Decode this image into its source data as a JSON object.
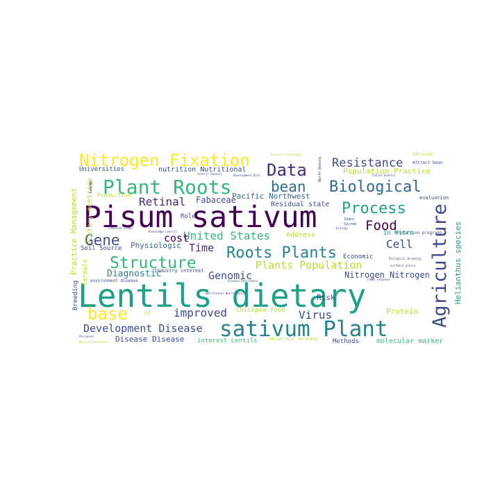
{
  "colors": {
    "background": "#ffffff",
    "dark_purple": "#440154",
    "indigo": "#482878",
    "blue": "#3e4a89",
    "steel_blue": "#31688e",
    "teal": "#26828e",
    "green_teal": "#1f9e89",
    "green": "#35b779",
    "lime": "#6ece58",
    "yellow_green": "#b5de2b",
    "yellow": "#fde725"
  },
  "words": [
    {
      "text": "Lentils dietary",
      "color": "#1f9e89"
    },
    {
      "text": "Pisum sativum",
      "color": "#440154"
    },
    {
      "text": "sativum Plant",
      "color": "#26828e"
    },
    {
      "text": "Agriculture",
      "color": "#3e4a89"
    },
    {
      "text": "Plant Roots",
      "color": "#35b779"
    },
    {
      "text": "Nitrogen Fixation",
      "color": "#fde725"
    },
    {
      "text": "Data",
      "color": "#482878"
    },
    {
      "text": "Biological",
      "color": "#31688e"
    },
    {
      "text": "bean",
      "color": "#31688e"
    },
    {
      "text": "Process",
      "color": "#1f9e89"
    },
    {
      "text": "Roots Plants",
      "color": "#26828e"
    },
    {
      "text": "Structure",
      "color": "#35b779"
    },
    {
      "text": "Resistance",
      "color": "#3e4a89"
    },
    {
      "text": "Food",
      "color": "#440154"
    },
    {
      "text": "Gene",
      "color": "#3e4a89"
    },
    {
      "text": "base",
      "color": "#fde725"
    },
    {
      "text": "Development Disease",
      "color": "#3e4a89"
    },
    {
      "text": "Retinal",
      "color": "#482878"
    },
    {
      "text": "United States",
      "color": "#35b779"
    },
    {
      "text": "cost",
      "color": "#440154"
    },
    {
      "text": "improved",
      "color": "#3e4a89"
    },
    {
      "text": "Cell",
      "color": "#3e4a89"
    },
    {
      "text": "Genomic",
      "color": "#3e4a89"
    },
    {
      "text": "Plants Population",
      "color": "#b5de2b"
    },
    {
      "text": "Time",
      "color": "#482878"
    },
    {
      "text": "Virus",
      "color": "#3e4a89"
    },
    {
      "text": "Fabaceae",
      "color": "#3e4a89"
    },
    {
      "text": "Pacific Northwest",
      "color": "#31688e"
    },
    {
      "text": "Residual state",
      "color": "#3e4a89"
    },
    {
      "text": "Population Practice",
      "color": "#b5de2b"
    },
    {
      "text": "Diagnostic",
      "color": "#26828e"
    },
    {
      "text": "Physiologic",
      "color": "#31688e"
    },
    {
      "text": "Disease Disease",
      "color": "#3e4a89"
    },
    {
      "text": "Nitrogen Nitrogen",
      "color": "#3e4a89"
    },
    {
      "text": "Helianthus species",
      "color": "#1f9e89"
    },
    {
      "text": "Practice Management",
      "color": "#b5de2b"
    },
    {
      "text": "dietary meetings",
      "color": "#b5de2b"
    },
    {
      "text": "Universities",
      "color": "#3e4a89"
    },
    {
      "text": "nutrition Nutritional",
      "color": "#3e4a89"
    },
    {
      "text": "Chickpea food",
      "color": "#b5de2b"
    },
    {
      "text": "Protein",
      "color": "#b5de2b"
    },
    {
      "text": "molecular marker",
      "color": "#35b779"
    },
    {
      "text": "interest Lentils",
      "color": "#35b779"
    },
    {
      "text": "Methods",
      "color": "#3e4a89"
    },
    {
      "text": "Economic",
      "color": "#3e4a89"
    },
    {
      "text": "Risk",
      "color": "#3e4a89"
    },
    {
      "text": "In Vitro",
      "color": "#1f9e89"
    },
    {
      "text": "Address",
      "color": "#b5de2b"
    },
    {
      "text": "Soil Source",
      "color": "#3e4a89"
    },
    {
      "text": "Cereals",
      "color": "#b5de2b"
    },
    {
      "text": "Breeding",
      "color": "#3e4a89"
    },
    {
      "text": "Role",
      "color": "#3e4a89"
    },
    {
      "text": "Production",
      "color": "#b5de2b"
    },
    {
      "text": "evaluation",
      "color": "#3e4a89"
    },
    {
      "text": "Service",
      "color": "#b5de2b"
    },
    {
      "text": "Attract bean",
      "color": "#3e4a89"
    },
    {
      "text": "Industry interest",
      "color": "#3e4a89"
    },
    {
      "text": "environment disease",
      "color": "#3e4a89"
    },
    {
      "text": "Production programs",
      "color": "#3e4a89"
    },
    {
      "text": "educational workshop",
      "color": "#b5de2b"
    },
    {
      "text": "of",
      "color": "#b5de2b"
    },
    {
      "text": "Idaho",
      "color": "#3e4a89"
    },
    {
      "text": "System",
      "color": "#3e4a89"
    },
    {
      "text": "Ecology",
      "color": "#3e4a89"
    },
    {
      "text": "Biological Breeding",
      "color": "#3e4a89"
    },
    {
      "text": "northern plains",
      "color": "#3e4a89"
    },
    {
      "text": "Genetic Genetic",
      "color": "#3e4a89"
    },
    {
      "text": "Development Diet",
      "color": "#3e4a89"
    },
    {
      "text": "Disease Technology",
      "color": "#b5de2b"
    },
    {
      "text": "Personnel",
      "color": "#3e4a89"
    },
    {
      "text": "Natural Resources",
      "color": "#b5de2b"
    },
    {
      "text": "Future Genetic",
      "color": "#3e4a89"
    },
    {
      "text": "Fabaceae farmer",
      "color": "#3e4a89"
    },
    {
      "text": "Nutritional Nutritional",
      "color": "#3e4a89"
    },
    {
      "text": "state response",
      "color": "#3e4a89"
    },
    {
      "text": "Disease Resistance",
      "color": "#3e4a89"
    },
    {
      "text": "Knowledge Lentils",
      "color": "#3e4a89"
    },
    {
      "text": "North Dakota",
      "color": "#482878"
    },
    {
      "text": "Legume",
      "color": "#482878"
    }
  ]
}
